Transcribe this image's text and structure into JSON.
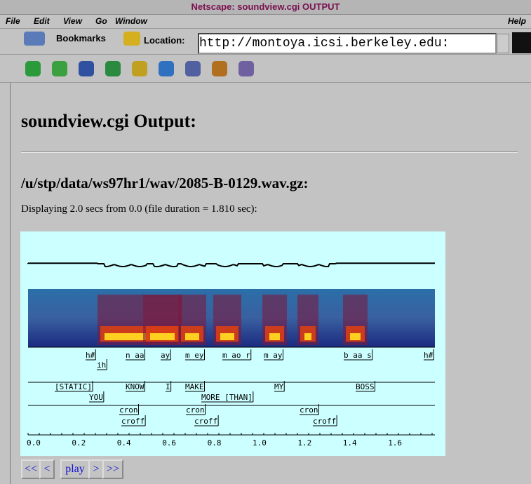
{
  "window": {
    "title": "Netscape: soundview.cgi OUTPUT",
    "menu": [
      "File",
      "Edit",
      "View",
      "Go",
      "Window",
      "Help"
    ],
    "bookmarks": "Bookmarks",
    "location_label": "Location:",
    "url": "http://montoya.icsi.berkeley.edu:"
  },
  "page": {
    "heading": "soundview.cgi Output:",
    "file": "/u/stp/data/ws97hr1/wav/2085-B-0129.wav.gz:",
    "info": "Displaying 2.0 secs from 0.0 (file duration = 1.810 sec):",
    "phones": [
      "h#",
      "ih",
      "n aa",
      "ay",
      "m ey",
      "m ao r",
      "m ay",
      "b aa s",
      "h#"
    ],
    "words": [
      "[STATIC]",
      "YOU",
      "KNOW",
      "I",
      "MAKE",
      "MORE [THAN]",
      "MY",
      "BOSS"
    ],
    "crons": [
      "cron",
      "croff",
      "cron",
      "croff",
      "cron",
      "croff"
    ],
    "axis": [
      "0.0",
      "0.2",
      "0.4",
      "0.6",
      "0.8",
      "1.0",
      "1.2",
      "1.4",
      "1.6"
    ],
    "buttons": [
      "<<",
      "<",
      "play",
      ">",
      ">>"
    ]
  }
}
